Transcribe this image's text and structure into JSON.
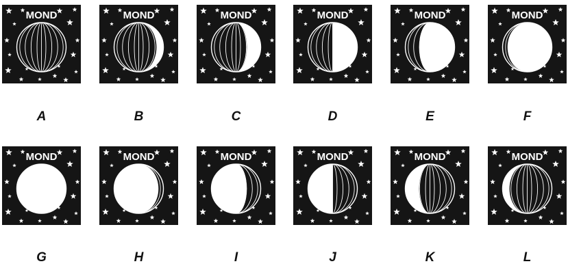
{
  "globe_title": "MOND",
  "background_color": "#151515",
  "moon_color": "#ffffff",
  "panels": [
    {
      "letter": "A",
      "phase": "new"
    },
    {
      "letter": "B",
      "phase": "waxing-crescent-thin"
    },
    {
      "letter": "C",
      "phase": "waxing-crescent"
    },
    {
      "letter": "D",
      "phase": "first-quarter"
    },
    {
      "letter": "E",
      "phase": "waxing-gibbous"
    },
    {
      "letter": "F",
      "phase": "nearly-full"
    },
    {
      "letter": "G",
      "phase": "full"
    },
    {
      "letter": "H",
      "phase": "waning-gibbous-thin"
    },
    {
      "letter": "I",
      "phase": "waning-gibbous"
    },
    {
      "letter": "J",
      "phase": "last-quarter"
    },
    {
      "letter": "K",
      "phase": "waning-crescent"
    },
    {
      "letter": "L",
      "phase": "waning-crescent-thin"
    }
  ]
}
